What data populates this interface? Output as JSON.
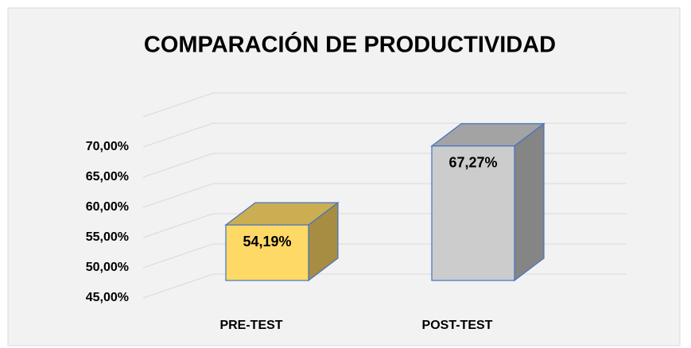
{
  "chart_data": {
    "type": "bar3d",
    "title": "COMPARACIÓN DE PRODUCTIVIDAD",
    "categories": [
      "PRE-TEST",
      "POST-TEST"
    ],
    "values": [
      54.19,
      67.27
    ],
    "value_labels": [
      "54,19%",
      "67,27%"
    ],
    "colors": [
      "#ffd966",
      "#cccccc"
    ],
    "ylim": [
      45,
      75
    ],
    "yticks": [
      {
        "value": 45,
        "label": "45,00%"
      },
      {
        "value": 50,
        "label": "50,00%"
      },
      {
        "value": 55,
        "label": "55,00%"
      },
      {
        "value": 60,
        "label": "60,00%"
      },
      {
        "value": 65,
        "label": "65,00%"
      },
      {
        "value": 70,
        "label": "70,00%"
      }
    ],
    "grid": true
  }
}
